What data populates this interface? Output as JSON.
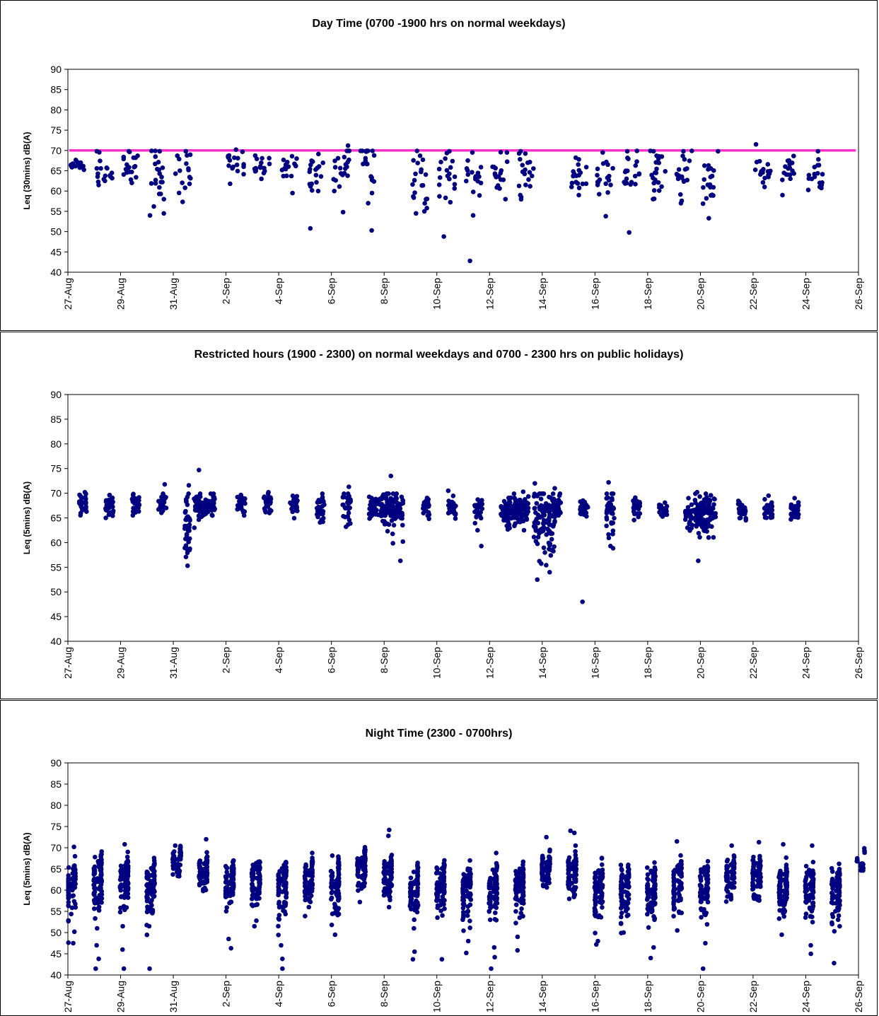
{
  "chart_data": [
    {
      "type": "scatter",
      "title": "Day Time (0700 -1900 hrs on normal weekdays)",
      "ylabel": "Leq (30mins) dB(A)",
      "xlabel": "",
      "ylim": [
        40,
        90
      ],
      "yticks": [
        40,
        45,
        50,
        55,
        60,
        65,
        70,
        75,
        80,
        85,
        90
      ],
      "xlim": [
        "27-Aug",
        "26-Sep"
      ],
      "xticks": [
        "27-Aug",
        "29-Aug",
        "31-Aug",
        "2-Sep",
        "4-Sep",
        "6-Sep",
        "8-Sep",
        "10-Sep",
        "12-Sep",
        "14-Sep",
        "16-Sep",
        "18-Sep",
        "20-Sep",
        "22-Sep",
        "24-Sep",
        "26-Sep"
      ],
      "grid": false,
      "limit_line": {
        "value": 70,
        "color": "#ff33cc"
      },
      "marker_color": "#000080",
      "clusters": [
        {
          "day": 0,
          "span": 0.6,
          "mean": 66.3,
          "sd": 0.9,
          "n": 16,
          "outliers": []
        },
        {
          "day": 1,
          "span": 0.6,
          "mean": 66.0,
          "sd": 1.8,
          "n": 16,
          "outliers": [
            62.5,
            69.8
          ]
        },
        {
          "day": 2,
          "span": 0.6,
          "mean": 66.0,
          "sd": 2.0,
          "n": 18,
          "outliers": [
            62.0,
            69.8
          ]
        },
        {
          "day": 3,
          "span": 0.6,
          "mean": 64.5,
          "sd": 3.5,
          "n": 20,
          "outliers": [
            56.2,
            54.0,
            58.0,
            69.8
          ]
        },
        {
          "day": 4,
          "span": 0.6,
          "mean": 64.8,
          "sd": 2.5,
          "n": 16,
          "outliers": [
            60.8,
            69.8
          ]
        },
        {
          "day": 6,
          "span": 0.6,
          "mean": 66.3,
          "sd": 1.8,
          "n": 16,
          "outliers": [
            61.8,
            70.2
          ]
        },
        {
          "day": 7,
          "span": 0.6,
          "mean": 66.3,
          "sd": 1.0,
          "n": 16,
          "outliers": [
            63.0
          ]
        },
        {
          "day": 8,
          "span": 0.6,
          "mean": 65.8,
          "sd": 1.8,
          "n": 16,
          "outliers": [
            59.5,
            68.0
          ]
        },
        {
          "day": 9,
          "span": 0.6,
          "mean": 64.8,
          "sd": 2.5,
          "n": 18,
          "outliers": [
            50.8,
            60.0
          ]
        },
        {
          "day": 10,
          "span": 0.6,
          "mean": 65.5,
          "sd": 3.5,
          "n": 20,
          "outliers": [
            71.2,
            54.8,
            60.0
          ]
        },
        {
          "day": 11,
          "span": 0.6,
          "mean": 66.5,
          "sd": 3.5,
          "n": 18,
          "outliers": [
            50.3,
            57.0
          ]
        },
        {
          "day": 13,
          "span": 0.6,
          "mean": 62.5,
          "sd": 4.0,
          "n": 20,
          "outliers": [
            54.5,
            55.0
          ]
        },
        {
          "day": 14,
          "span": 0.6,
          "mean": 63.0,
          "sd": 3.5,
          "n": 18,
          "outliers": [
            48.8,
            69.8
          ]
        },
        {
          "day": 15,
          "span": 0.6,
          "mean": 63.5,
          "sd": 2.0,
          "n": 16,
          "outliers": [
            54.0,
            42.8,
            69.5
          ]
        },
        {
          "day": 16,
          "span": 0.6,
          "mean": 64.5,
          "sd": 2.8,
          "n": 16,
          "outliers": [
            58.0,
            69.5
          ]
        },
        {
          "day": 17,
          "span": 0.6,
          "mean": 64.5,
          "sd": 3.0,
          "n": 18,
          "outliers": [
            58.5,
            69.8
          ]
        },
        {
          "day": 19,
          "span": 0.6,
          "mean": 64.0,
          "sd": 2.0,
          "n": 18,
          "outliers": [
            67.8,
            59.0
          ]
        },
        {
          "day": 20,
          "span": 0.6,
          "mean": 63.5,
          "sd": 2.5,
          "n": 18,
          "outliers": [
            53.8,
            69.5
          ]
        },
        {
          "day": 21,
          "span": 0.6,
          "mean": 64.0,
          "sd": 3.0,
          "n": 18,
          "outliers": [
            49.8,
            69.8
          ]
        },
        {
          "day": 22,
          "span": 0.6,
          "mean": 64.0,
          "sd": 3.5,
          "n": 20,
          "outliers": [
            58.0,
            69.8
          ]
        },
        {
          "day": 23,
          "span": 0.6,
          "mean": 64.0,
          "sd": 3.0,
          "n": 18,
          "outliers": [
            57.0,
            69.8
          ]
        },
        {
          "day": 24,
          "span": 0.6,
          "mean": 63.0,
          "sd": 3.5,
          "n": 18,
          "outliers": [
            53.3,
            69.8
          ]
        },
        {
          "day": 26,
          "span": 0.6,
          "mean": 65.0,
          "sd": 1.5,
          "n": 16,
          "outliers": [
            71.5,
            61.0
          ]
        },
        {
          "day": 27,
          "span": 0.6,
          "mean": 64.5,
          "sd": 1.5,
          "n": 16,
          "outliers": [
            59.0
          ]
        },
        {
          "day": 28,
          "span": 0.6,
          "mean": 63.5,
          "sd": 1.8,
          "n": 16,
          "outliers": [
            69.8,
            61.0
          ]
        }
      ]
    },
    {
      "type": "scatter",
      "title": "Restricted hours (1900 - 2300) on normal weekdays and 0700 - 2300 hrs on public holidays)",
      "ylabel": "Leq (5mins) dB(A)",
      "xlabel": "",
      "ylim": [
        40,
        90
      ],
      "yticks": [
        40,
        45,
        50,
        55,
        60,
        65,
        70,
        75,
        80,
        85,
        90
      ],
      "xlim": [
        "27-Aug",
        "26-Sep"
      ],
      "xticks": [
        "27-Aug",
        "29-Aug",
        "31-Aug",
        "2-Sep",
        "4-Sep",
        "6-Sep",
        "8-Sep",
        "10-Sep",
        "12-Sep",
        "14-Sep",
        "16-Sep",
        "18-Sep",
        "20-Sep",
        "22-Sep",
        "24-Sep",
        "26-Sep"
      ],
      "grid": false,
      "marker_color": "#000080",
      "clusters": [
        {
          "day": 0.35,
          "span": 0.3,
          "mean": 68.2,
          "sd": 1.0,
          "n": 30,
          "outliers": [
            70.2
          ]
        },
        {
          "day": 1.35,
          "span": 0.3,
          "mean": 67.5,
          "sd": 1.0,
          "n": 30,
          "outliers": [
            65.0
          ]
        },
        {
          "day": 2.35,
          "span": 0.3,
          "mean": 67.8,
          "sd": 1.0,
          "n": 30,
          "outliers": []
        },
        {
          "day": 3.35,
          "span": 0.3,
          "mean": 68.0,
          "sd": 1.0,
          "n": 30,
          "outliers": [
            71.8
          ]
        },
        {
          "day": 4.35,
          "span": 0.2,
          "mean": 64.0,
          "sd": 3.5,
          "n": 40,
          "outliers": [
            55.3,
            71.6
          ]
        },
        {
          "day": 4.7,
          "span": 0.8,
          "mean": 67.5,
          "sd": 1.2,
          "n": 120,
          "outliers": [
            74.7,
            63.0
          ]
        },
        {
          "day": 6.35,
          "span": 0.3,
          "mean": 68.0,
          "sd": 0.9,
          "n": 30,
          "outliers": [
            65.5
          ]
        },
        {
          "day": 7.35,
          "span": 0.3,
          "mean": 68.3,
          "sd": 1.0,
          "n": 30,
          "outliers": [
            70.2
          ]
        },
        {
          "day": 8.35,
          "span": 0.3,
          "mean": 67.8,
          "sd": 1.0,
          "n": 30,
          "outliers": []
        },
        {
          "day": 9.35,
          "span": 0.3,
          "mean": 67.0,
          "sd": 1.2,
          "n": 30,
          "outliers": [
            64.2
          ]
        },
        {
          "day": 10.35,
          "span": 0.3,
          "mean": 67.5,
          "sd": 1.5,
          "n": 30,
          "outliers": [
            63.2,
            71.3
          ]
        },
        {
          "day": 11.35,
          "span": 0.3,
          "mean": 67.0,
          "sd": 1.2,
          "n": 30,
          "outliers": []
        },
        {
          "day": 11.7,
          "span": 0.7,
          "mean": 67.0,
          "sd": 1.8,
          "n": 90,
          "outliers": [
            73.5,
            62.3
          ]
        },
        {
          "day": 12.35,
          "span": 0.3,
          "mean": 66.8,
          "sd": 1.2,
          "n": 30,
          "outliers": [
            56.3,
            60.2,
            69.2
          ]
        },
        {
          "day": 13.35,
          "span": 0.3,
          "mean": 67.3,
          "sd": 1.0,
          "n": 30,
          "outliers": []
        },
        {
          "day": 14.35,
          "span": 0.3,
          "mean": 67.0,
          "sd": 1.0,
          "n": 30,
          "outliers": [
            70.5
          ]
        },
        {
          "day": 15.35,
          "span": 0.3,
          "mean": 66.8,
          "sd": 1.2,
          "n": 30,
          "outliers": [
            59.3,
            62.5
          ]
        },
        {
          "day": 16.35,
          "span": 0.3,
          "mean": 66.0,
          "sd": 1.2,
          "n": 30,
          "outliers": []
        },
        {
          "day": 16.6,
          "span": 0.8,
          "mean": 66.8,
          "sd": 1.3,
          "n": 130,
          "outliers": [
            70.3,
            62.5
          ]
        },
        {
          "day": 17.6,
          "span": 0.8,
          "mean": 64.5,
          "sd": 3.5,
          "n": 120,
          "outliers": [
            52.5,
            72.0,
            54.0
          ]
        },
        {
          "day": 18.35,
          "span": 0.3,
          "mean": 67.0,
          "sd": 1.2,
          "n": 30,
          "outliers": [
            71.0
          ]
        },
        {
          "day": 19.35,
          "span": 0.3,
          "mean": 66.2,
          "sd": 1.0,
          "n": 30,
          "outliers": [
            48.0,
            68.5
          ]
        },
        {
          "day": 20.35,
          "span": 0.3,
          "mean": 66.0,
          "sd": 3.0,
          "n": 40,
          "outliers": [
            59.3,
            72.2
          ]
        },
        {
          "day": 21.35,
          "span": 0.3,
          "mean": 67.0,
          "sd": 1.0,
          "n": 30,
          "outliers": []
        },
        {
          "day": 22.35,
          "span": 0.3,
          "mean": 66.5,
          "sd": 1.0,
          "n": 30,
          "outliers": []
        },
        {
          "day": 23.35,
          "span": 0.3,
          "mean": 65.5,
          "sd": 1.2,
          "n": 30,
          "outliers": [
            63.0
          ]
        },
        {
          "day": 23.7,
          "span": 0.8,
          "mean": 66.0,
          "sd": 2.0,
          "n": 120,
          "outliers": [
            56.3,
            70.2
          ]
        },
        {
          "day": 25.35,
          "span": 0.3,
          "mean": 66.8,
          "sd": 1.2,
          "n": 30,
          "outliers": []
        },
        {
          "day": 26.35,
          "span": 0.3,
          "mean": 67.0,
          "sd": 1.2,
          "n": 30,
          "outliers": [
            69.5
          ]
        },
        {
          "day": 27.35,
          "span": 0.3,
          "mean": 66.5,
          "sd": 1.0,
          "n": 30,
          "outliers": [
            69.0
          ]
        }
      ]
    },
    {
      "type": "scatter",
      "title": "Night Time (2300 - 0700hrs)",
      "ylabel": "Leq (5mins) dB(A)",
      "xlabel": "",
      "ylim": [
        40,
        90
      ],
      "yticks": [
        40,
        45,
        50,
        55,
        60,
        65,
        70,
        75,
        80,
        85,
        90
      ],
      "xlim": [
        "27-Aug",
        "26-Sep"
      ],
      "xticks": [
        "27-Aug",
        "29-Aug",
        "31-Aug",
        "2-Sep",
        "4-Sep",
        "6-Sep",
        "8-Sep",
        "10-Sep",
        "12-Sep",
        "14-Sep",
        "16-Sep",
        "18-Sep",
        "20-Sep",
        "22-Sep",
        "24-Sep",
        "26-Sep"
      ],
      "grid": false,
      "marker_color": "#000080",
      "nights": [
        {
          "day": 0,
          "mean": 62.0,
          "sd": 4.0,
          "n": 55,
          "outliers": [
            47.5,
            50.2,
            70.2
          ]
        },
        {
          "day": 1,
          "mean": 63.0,
          "sd": 4.0,
          "n": 60,
          "outliers": [
            41.5,
            43.8,
            47.0,
            51.0
          ]
        },
        {
          "day": 2,
          "mean": 63.0,
          "sd": 4.0,
          "n": 60,
          "outliers": [
            41.5,
            46.0,
            51.5,
            70.8
          ]
        },
        {
          "day": 3,
          "mean": 62.5,
          "sd": 4.0,
          "n": 60,
          "outliers": [
            41.5,
            51.5
          ]
        },
        {
          "day": 4,
          "mean": 67.5,
          "sd": 1.5,
          "n": 55,
          "outliers": [
            70.5
          ]
        },
        {
          "day": 5,
          "mean": 65.0,
          "sd": 2.5,
          "n": 55,
          "outliers": [
            72.0
          ]
        },
        {
          "day": 6,
          "mean": 63.0,
          "sd": 3.5,
          "n": 60,
          "outliers": [
            46.3,
            48.5
          ]
        },
        {
          "day": 7,
          "mean": 63.5,
          "sd": 3.5,
          "n": 60,
          "outliers": [
            51.5,
            52.8
          ]
        },
        {
          "day": 8,
          "mean": 62.0,
          "sd": 4.0,
          "n": 60,
          "outliers": [
            41.5,
            43.8,
            47.0
          ]
        },
        {
          "day": 9,
          "mean": 63.5,
          "sd": 3.0,
          "n": 60,
          "outliers": [
            56.0
          ]
        },
        {
          "day": 10,
          "mean": 62.0,
          "sd": 4.0,
          "n": 60,
          "outliers": [
            49.5
          ]
        },
        {
          "day": 11,
          "mean": 66.0,
          "sd": 2.5,
          "n": 55,
          "outliers": [
            57.2
          ]
        },
        {
          "day": 12,
          "mean": 64.0,
          "sd": 3.0,
          "n": 60,
          "outliers": [
            56.0,
            74.2,
            72.8
          ]
        },
        {
          "day": 13,
          "mean": 61.0,
          "sd": 4.0,
          "n": 60,
          "outliers": [
            43.7,
            45.5,
            51.0
          ]
        },
        {
          "day": 14,
          "mean": 62.0,
          "sd": 4.0,
          "n": 60,
          "outliers": [
            43.7
          ]
        },
        {
          "day": 15,
          "mean": 61.5,
          "sd": 4.0,
          "n": 60,
          "outliers": [
            45.2,
            48.0
          ]
        },
        {
          "day": 16,
          "mean": 61.0,
          "sd": 4.0,
          "n": 60,
          "outliers": [
            41.5,
            44.2,
            46.5
          ]
        },
        {
          "day": 17,
          "mean": 61.5,
          "sd": 4.0,
          "n": 60,
          "outliers": [
            45.8,
            49.0
          ]
        },
        {
          "day": 18,
          "mean": 65.5,
          "sd": 2.5,
          "n": 55,
          "outliers": [
            72.5
          ]
        },
        {
          "day": 19,
          "mean": 64.5,
          "sd": 3.0,
          "n": 60,
          "outliers": [
            74.0,
            73.5
          ]
        },
        {
          "day": 20,
          "mean": 61.0,
          "sd": 4.0,
          "n": 60,
          "outliers": [
            47.2,
            48.0
          ]
        },
        {
          "day": 21,
          "mean": 61.5,
          "sd": 4.0,
          "n": 60,
          "outliers": [
            50.0
          ]
        },
        {
          "day": 22,
          "mean": 61.0,
          "sd": 4.0,
          "n": 60,
          "outliers": [
            44.0,
            46.5
          ]
        },
        {
          "day": 23,
          "mean": 62.5,
          "sd": 4.0,
          "n": 60,
          "outliers": [
            50.5,
            71.5
          ]
        },
        {
          "day": 24,
          "mean": 61.5,
          "sd": 4.0,
          "n": 60,
          "outliers": [
            41.5,
            47.5
          ]
        },
        {
          "day": 25,
          "mean": 64.0,
          "sd": 3.0,
          "n": 60,
          "outliers": [
            70.5
          ]
        },
        {
          "day": 26,
          "mean": 64.0,
          "sd": 3.0,
          "n": 60,
          "outliers": [
            71.3
          ]
        },
        {
          "day": 27,
          "mean": 61.5,
          "sd": 4.0,
          "n": 60,
          "outliers": [
            49.5,
            70.8
          ]
        },
        {
          "day": 28,
          "mean": 61.0,
          "sd": 4.0,
          "n": 60,
          "outliers": [
            45.0,
            47.0,
            70.5
          ]
        },
        {
          "day": 29,
          "mean": 61.0,
          "sd": 4.0,
          "n": 60,
          "outliers": [
            42.8,
            50.3
          ]
        },
        {
          "day": 29.95,
          "mean": 67.5,
          "sd": 0.6,
          "n": 8,
          "outliers": []
        }
      ]
    }
  ]
}
